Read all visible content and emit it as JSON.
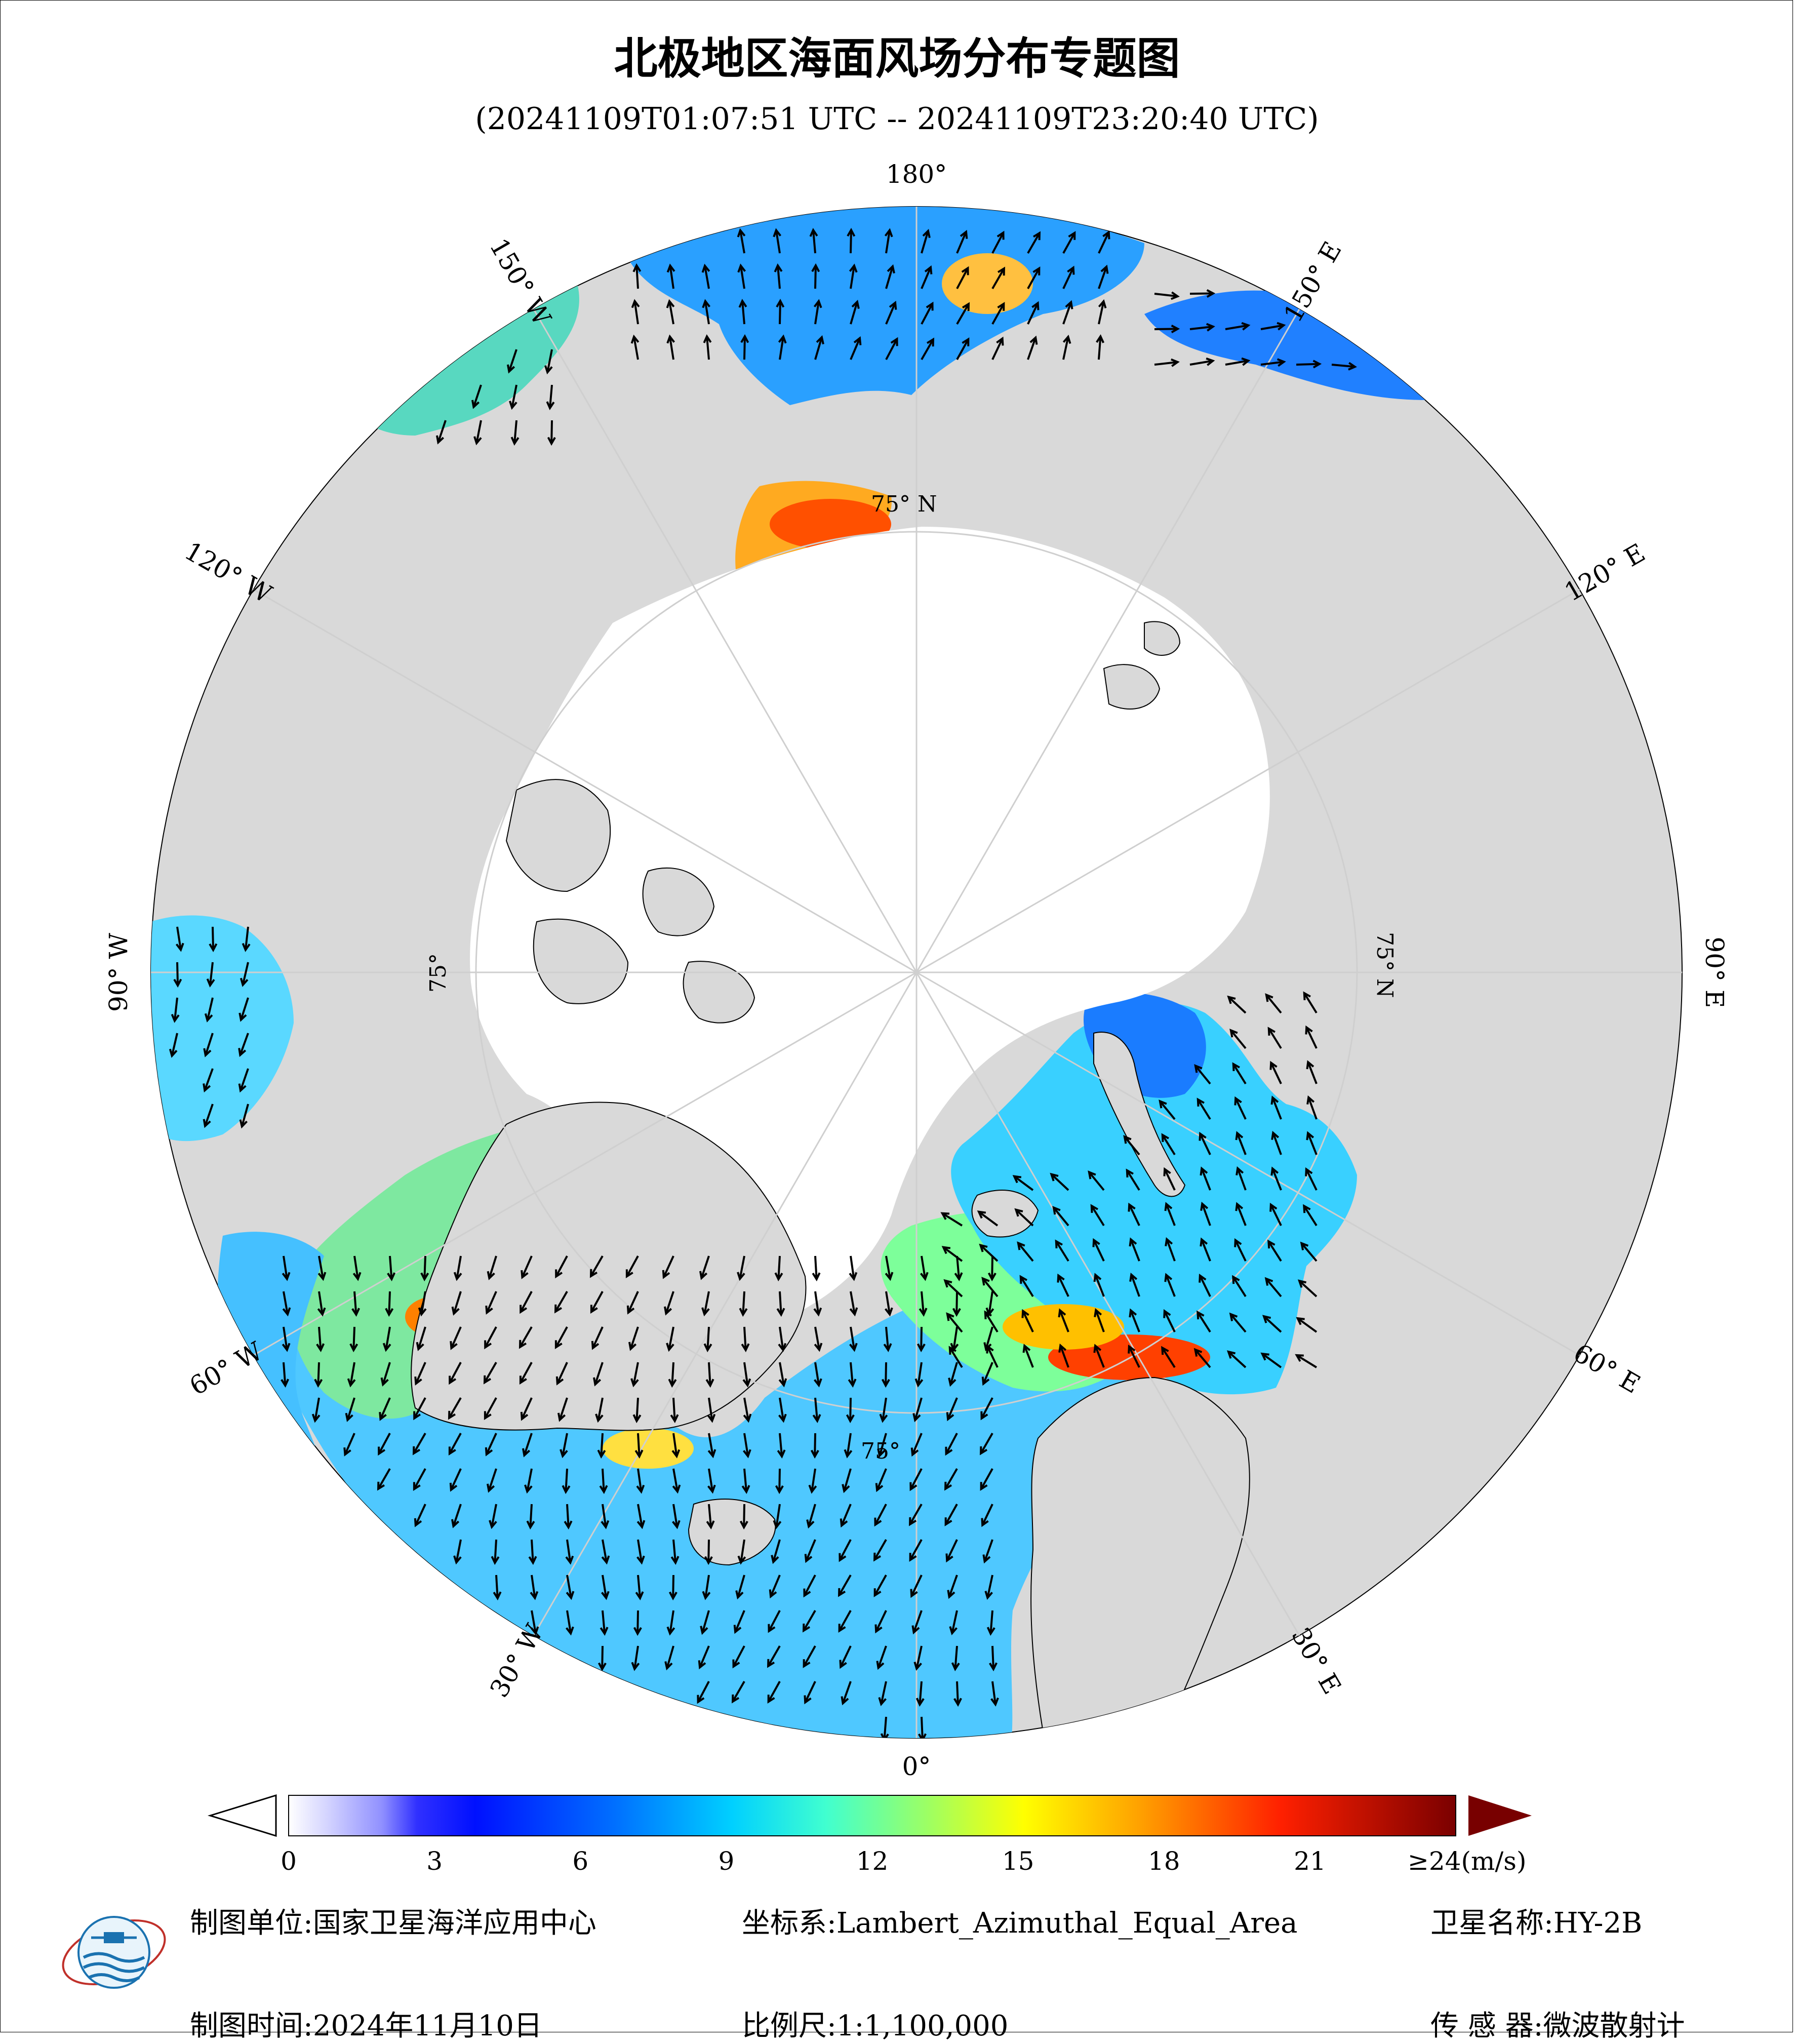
{
  "header": {
    "title": "北极地区海面风场分布专题图",
    "subtitle": "(20241109T01:07:51 UTC -- 20241109T23:20:40 UTC)"
  },
  "graticule": {
    "lon_labels": [
      {
        "lon": 180,
        "text": "180°"
      },
      {
        "lon": -150,
        "text": "150° W"
      },
      {
        "lon": 150,
        "text": "150° E"
      },
      {
        "lon": -120,
        "text": "120° W"
      },
      {
        "lon": 120,
        "text": "120° E"
      },
      {
        "lon": -90,
        "text": "90° W"
      },
      {
        "lon": 90,
        "text": "90° E"
      },
      {
        "lon": -60,
        "text": "60° W"
      },
      {
        "lon": 60,
        "text": "60° E"
      },
      {
        "lon": -30,
        "text": "30° W"
      },
      {
        "lon": 30,
        "text": "30° E"
      },
      {
        "lon": 0,
        "text": "0°"
      }
    ],
    "lat_label": "75° N",
    "lat_label_short": "75°"
  },
  "colorbar": {
    "ticks": [
      "0",
      "3",
      "6",
      "9",
      "12",
      "15",
      "18",
      "21"
    ],
    "max_label": "≥24(m/s)",
    "min": 0,
    "max": 24,
    "colors": [
      "#ffffff",
      "#c8c8ff",
      "#5050ff",
      "#0000ff",
      "#0070ff",
      "#00c8ff",
      "#00ffff",
      "#80ff80",
      "#ffff00",
      "#ffa000",
      "#ff3000",
      "#b00000",
      "#780000"
    ]
  },
  "footer": {
    "unit_label": "制图单位:",
    "unit_value": "国家卫星海洋应用中心",
    "crs_label": "坐标系:",
    "crs_value": "Lambert_Azimuthal_Equal_Area",
    "satellite_label": "卫星名称:",
    "satellite_value": "HY-2B",
    "date_label": "制图时间:",
    "date_value": "2024年11月10日",
    "scale_label": "比例尺:",
    "scale_value": "1:1,100,000",
    "sensor_label": "传 感 器:",
    "sensor_value": "微波散射计"
  }
}
